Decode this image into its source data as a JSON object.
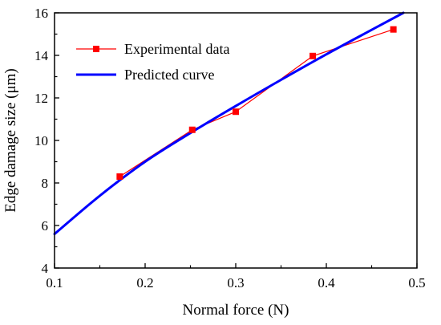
{
  "chart_data": {
    "type": "line",
    "xlabel": "Normal force (N)",
    "ylabel": "Edge damage size (μm)",
    "xlim": [
      0.1,
      0.5
    ],
    "ylim": [
      4,
      16
    ],
    "x_ticks": [
      "0.1",
      "0.2",
      "0.3",
      "0.4",
      "0.5"
    ],
    "y_ticks": [
      "4",
      "6",
      "8",
      "10",
      "12",
      "14",
      "16"
    ],
    "grid": false,
    "legend_position": "top-left",
    "series": [
      {
        "name": "Experimental data",
        "kind": "line-markers",
        "color": "#ff0000",
        "marker": "square",
        "x": [
          0.172,
          0.252,
          0.3,
          0.385,
          0.474
        ],
        "y": [
          8.3,
          10.5,
          11.35,
          13.97,
          15.22
        ]
      },
      {
        "name": "Predicted curve",
        "kind": "line",
        "color": "#0000ff",
        "x": [
          0.1,
          0.15,
          0.2,
          0.25,
          0.3,
          0.35,
          0.4,
          0.45,
          0.485
        ],
        "y": [
          5.6,
          7.4,
          9.0,
          10.35,
          11.62,
          12.85,
          14.05,
          15.2,
          16.0
        ]
      }
    ]
  }
}
